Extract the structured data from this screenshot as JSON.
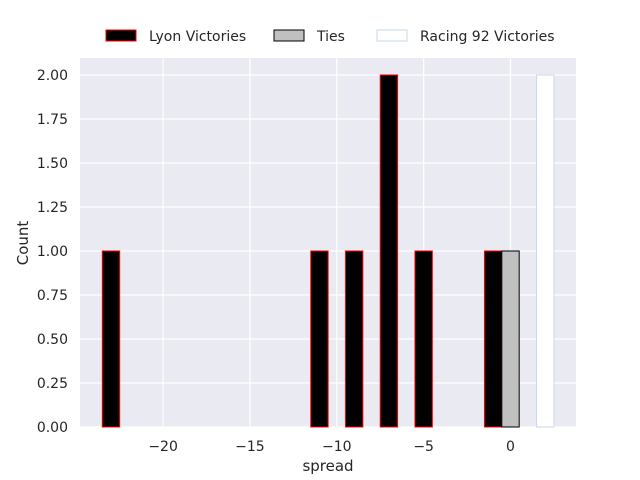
{
  "chart_data": {
    "type": "bar",
    "title": "",
    "xlabel": "spread",
    "ylabel": "Count",
    "xlim": [
      -25,
      3.7
    ],
    "ylim": [
      0,
      2.0
    ],
    "xticks": [
      -20,
      -15,
      -10,
      -5,
      0
    ],
    "xtick_labels": [
      "−20",
      "−15",
      "−10",
      "−5",
      "0"
    ],
    "yticks": [
      0,
      0.25,
      0.5,
      0.75,
      1.0,
      1.25,
      1.5,
      1.75,
      2.0
    ],
    "ytick_labels": [
      "0.00",
      "0.25",
      "0.50",
      "0.75",
      "1.00",
      "1.25",
      "1.75",
      "2.00"
    ],
    "ytick_labels_full": [
      "0.00",
      "0.25",
      "0.50",
      "0.75",
      "1.00",
      "1.25",
      "1.50",
      "1.75",
      "2.00"
    ],
    "grid": true,
    "bar_width": 1.0,
    "legend_position": "top-center",
    "series": [
      {
        "name": "Lyon Victories",
        "fill": "#000000",
        "stroke": "#ff0000",
        "bars": [
          {
            "x": -23,
            "count": 1
          },
          {
            "x": -11,
            "count": 1
          },
          {
            "x": -9,
            "count": 1
          },
          {
            "x": -7,
            "count": 2
          },
          {
            "x": -5,
            "count": 1
          },
          {
            "x": -1,
            "count": 1
          }
        ]
      },
      {
        "name": "Ties",
        "fill": "#c0c0c0",
        "stroke": "#000000",
        "bars": [
          {
            "x": 0,
            "count": 1
          }
        ]
      },
      {
        "name": "Racing 92 Victories",
        "fill": "#ffffff",
        "stroke": "#c5d9ee",
        "bars": [
          {
            "x": 2,
            "count": 2
          }
        ]
      }
    ]
  }
}
